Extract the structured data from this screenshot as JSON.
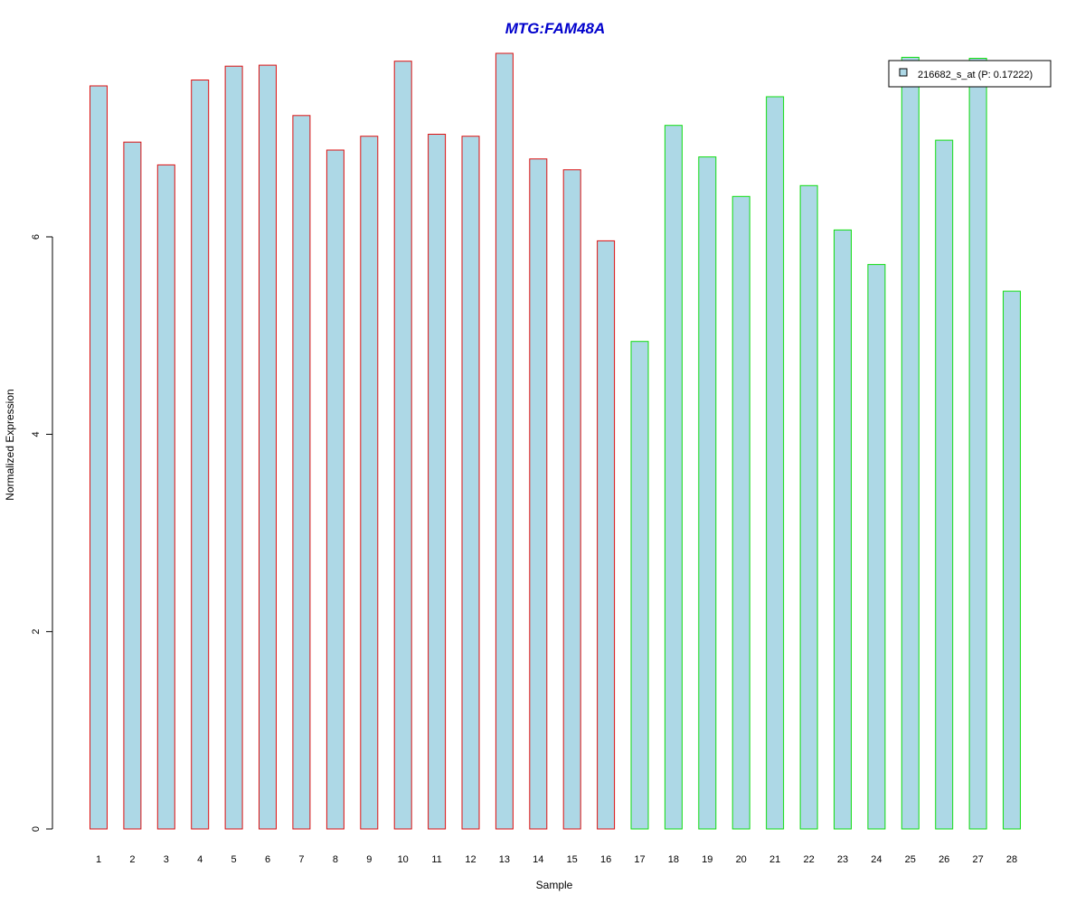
{
  "chart_data": {
    "type": "bar",
    "title": "MTG:FAM48A",
    "xlabel": "Sample",
    "ylabel": "Normalized Expression",
    "categories": [
      "1",
      "2",
      "3",
      "4",
      "5",
      "6",
      "7",
      "8",
      "9",
      "10",
      "11",
      "12",
      "13",
      "14",
      "15",
      "16",
      "17",
      "18",
      "19",
      "20",
      "21",
      "22",
      "23",
      "24",
      "25",
      "26",
      "27",
      "28"
    ],
    "values": [
      7.53,
      6.96,
      6.73,
      7.59,
      7.73,
      7.74,
      7.23,
      6.88,
      7.02,
      7.78,
      7.04,
      7.02,
      7.86,
      6.79,
      6.68,
      5.96,
      4.94,
      7.13,
      6.81,
      6.41,
      7.42,
      6.52,
      6.07,
      5.72,
      7.82,
      6.98,
      7.81,
      5.45
    ],
    "ylim": [
      0,
      7.86
    ],
    "yticks": [
      "0",
      "2",
      "4",
      "6"
    ],
    "series": [
      {
        "name": "216682_s_at (P: 0.17222)",
        "values": [
          7.53,
          6.96,
          6.73,
          7.59,
          7.73,
          7.74,
          7.23,
          6.88,
          7.02,
          7.78,
          7.04,
          7.02,
          7.86,
          6.79,
          6.68,
          5.96,
          4.94,
          7.13,
          6.81,
          6.41,
          7.42,
          6.52,
          6.07,
          5.72,
          7.82,
          6.98,
          7.81,
          5.45
        ]
      }
    ],
    "groups": [
      {
        "from": 1,
        "to": 16,
        "border_color": "#dd1111"
      },
      {
        "from": 17,
        "to": 28,
        "border_color": "#11dd11"
      }
    ],
    "colors": {
      "bar_fill": "#add8e6",
      "title": "#0000cc"
    },
    "legend": {
      "label": "216682_s_at (P: 0.17222)",
      "placement": "top-right"
    },
    "grid": false
  }
}
